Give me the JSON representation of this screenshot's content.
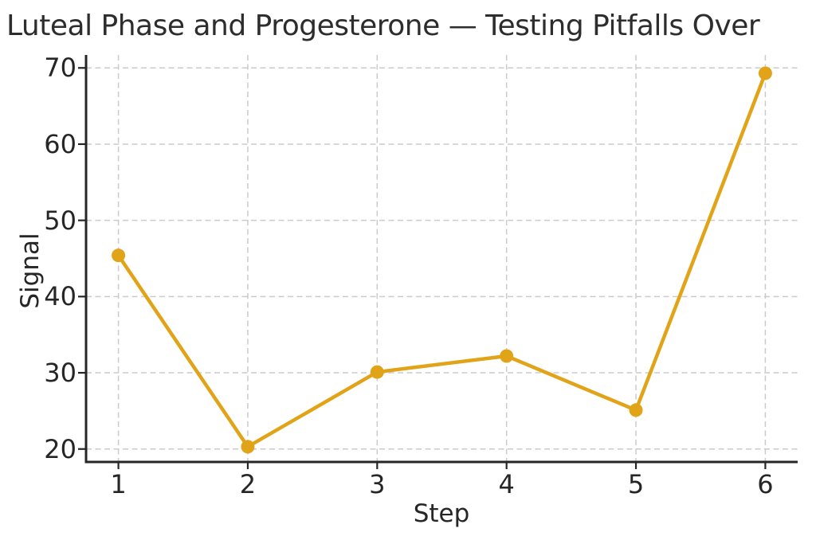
{
  "chart_data": {
    "type": "line",
    "title": "Luteal Phase and Progesterone — Testing Pitfalls Over",
    "xlabel": "Step",
    "ylabel": "Signal",
    "x": [
      1,
      2,
      3,
      4,
      5,
      6
    ],
    "series": [
      {
        "name": "Signal",
        "values": [
          45.4,
          20.3,
          30.1,
          32.2,
          25.1,
          69.3
        ]
      }
    ],
    "x_ticks": [
      "1",
      "2",
      "3",
      "4",
      "5",
      "6"
    ],
    "y_ticks": [
      "20",
      "30",
      "40",
      "50",
      "60",
      "70"
    ],
    "xlim": [
      0.75,
      6.25
    ],
    "ylim": [
      18.3,
      71.7
    ],
    "grid": "dashed",
    "legend": "none",
    "marker": "circle",
    "colors": {
      "line": "#E1A318",
      "grid": "#CBCBCB",
      "spine": "#262626",
      "text": "#2D2D2D"
    }
  }
}
